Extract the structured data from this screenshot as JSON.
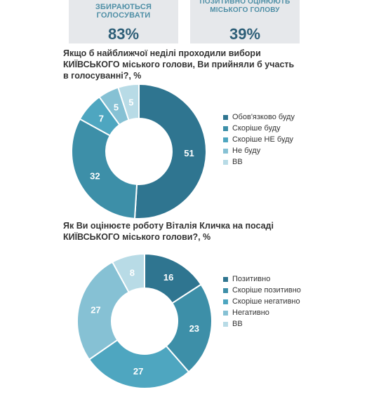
{
  "kpis": [
    {
      "label": "ЗБИРАЮТЬСЯ ГОЛОСУВАТИ",
      "value": "83%"
    },
    {
      "label": "ПОЗИТИВНО ОЦІНЮЮТЬ МІСЬКОГО ГОЛОВУ",
      "value": "39%"
    }
  ],
  "chart_data": [
    {
      "type": "pie",
      "title": "Якщо б найближчої неділі проходили вибори КИЇВСЬКОГО міського голови, Ви прийняли б участь в голосуванні?, %",
      "categories": [
        "Обов'язково буду",
        "Скоріше буду",
        "Скоріше НЕ буду",
        "Не буду",
        "ВВ"
      ],
      "values": [
        51,
        32,
        7,
        5,
        5
      ],
      "colors": [
        "#2f7590",
        "#3d8fa8",
        "#4ea6c0",
        "#86c1d4",
        "#b8dbe6"
      ],
      "legend": "right"
    },
    {
      "type": "pie",
      "title": "Як Ви оцінюєте роботу Віталія Кличка на посаді КИЇВСЬКОГО міського голови?, %",
      "categories": [
        "Позитивно",
        "Скоріше позитивно",
        "Скоріше негативно",
        "Негативно",
        "ВВ"
      ],
      "values": [
        16,
        23,
        27,
        27,
        8
      ],
      "colors": [
        "#2f7590",
        "#3d8fa8",
        "#4ea6c0",
        "#86c1d4",
        "#b8dbe6"
      ],
      "legend": "right"
    }
  ]
}
